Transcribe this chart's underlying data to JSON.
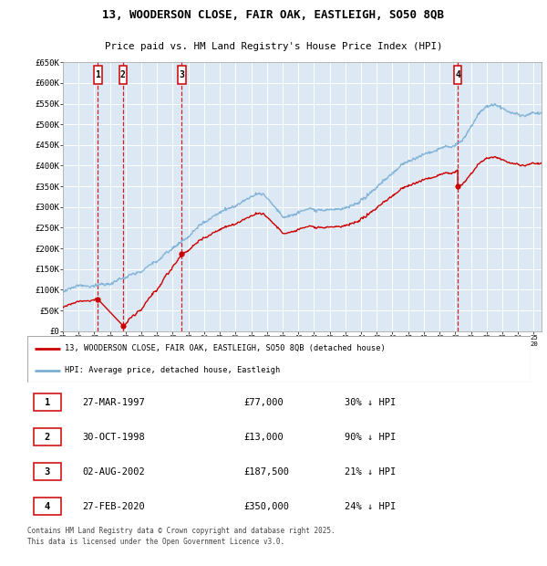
{
  "title_line1": "13, WOODERSON CLOSE, FAIR OAK, EASTLEIGH, SO50 8QB",
  "title_line2": "Price paid vs. HM Land Registry's House Price Index (HPI)",
  "bg_color": "#dce9f5",
  "grid_color": "#ffffff",
  "red_color": "#cc0000",
  "blue_color": "#7bafd4",
  "transactions": [
    {
      "num": 1,
      "date_num": 1997.23,
      "price": 77000
    },
    {
      "num": 2,
      "date_num": 1998.83,
      "price": 13000
    },
    {
      "num": 3,
      "date_num": 2002.58,
      "price": 187500
    },
    {
      "num": 4,
      "date_num": 2020.16,
      "price": 350000
    }
  ],
  "transaction_labels": [
    {
      "num": 1,
      "date": "27-MAR-1997",
      "price": "£77,000",
      "pct": "30% ↓ HPI"
    },
    {
      "num": 2,
      "date": "30-OCT-1998",
      "price": "£13,000",
      "pct": "90% ↓ HPI"
    },
    {
      "num": 3,
      "date": "02-AUG-2002",
      "price": "£187,500",
      "pct": "21% ↓ HPI"
    },
    {
      "num": 4,
      "date": "27-FEB-2020",
      "price": "£350,000",
      "pct": "24% ↓ HPI"
    }
  ],
  "legend_label_red": "13, WOODERSON CLOSE, FAIR OAK, EASTLEIGH, SO50 8QB (detached house)",
  "legend_label_blue": "HPI: Average price, detached house, Eastleigh",
  "footer": "Contains HM Land Registry data © Crown copyright and database right 2025.\nThis data is licensed under the Open Government Licence v3.0.",
  "ylim": [
    0,
    650000
  ],
  "xlim": [
    1995,
    2025.5
  ],
  "yticks": [
    0,
    50000,
    100000,
    150000,
    200000,
    250000,
    300000,
    350000,
    400000,
    450000,
    500000,
    550000,
    600000,
    650000
  ],
  "ytick_labels": [
    "£0",
    "£50K",
    "£100K",
    "£150K",
    "£200K",
    "£250K",
    "£300K",
    "£350K",
    "£400K",
    "£450K",
    "£500K",
    "£550K",
    "£600K",
    "£650K"
  ],
  "xticks": [
    1995,
    1996,
    1997,
    1998,
    1999,
    2000,
    2001,
    2002,
    2003,
    2004,
    2005,
    2006,
    2007,
    2008,
    2009,
    2010,
    2011,
    2012,
    2013,
    2014,
    2015,
    2016,
    2017,
    2018,
    2019,
    2020,
    2021,
    2022,
    2023,
    2024,
    2025
  ]
}
